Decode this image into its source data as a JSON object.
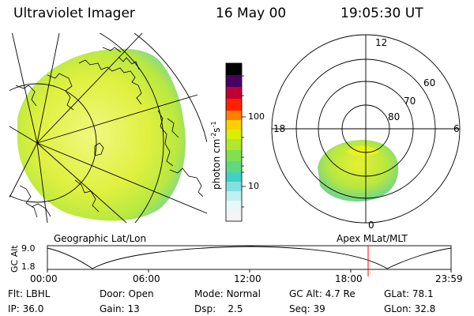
{
  "header": {
    "instrument": "Ultraviolet Imager",
    "date": "16 May 00",
    "time": "19:05:30 UT"
  },
  "colorbar": {
    "label": "photon cm-2s-1",
    "label_base": "photon cm",
    "label_exp1": "-2",
    "label_mid": "s",
    "label_exp2": "-1",
    "scale": "log",
    "range": [
      2.5,
      600
    ],
    "ticks": [
      {
        "value": 10,
        "label": "10"
      },
      {
        "value": 100,
        "label": "100"
      }
    ],
    "colors": [
      "#f0f0f0",
      "#a8e8e8",
      "#40d0d0",
      "#90e040",
      "#d8f000",
      "#ffd000",
      "#ff8000",
      "#ff2000",
      "#c00030",
      "#800060",
      "#300040",
      "#000000"
    ]
  },
  "left_panel": {
    "caption": "Geographic Lat/Lon"
  },
  "right_panel": {
    "caption": "Apex MLat/MLT",
    "mlt_labels": {
      "top": "12",
      "left": "18",
      "right": "6",
      "bottom": "0"
    },
    "lat_labels": [
      {
        "value": 60,
        "label": "60"
      },
      {
        "value": 70,
        "label": "70"
      },
      {
        "value": 80,
        "label": "80"
      }
    ]
  },
  "timeline": {
    "ylabel": "GC Alt",
    "ytick_top": "9.0",
    "ytick_bottom": "1.8",
    "time_labels": [
      "00:00",
      "06:00",
      "12:00",
      "18:00",
      "23:59"
    ],
    "current_time_hours": 19.09,
    "current_marker_color": "#ff0000"
  },
  "info": {
    "flt": {
      "label": "Flt:",
      "value": "LBHL"
    },
    "ip": {
      "label": "IP:",
      "value": "36.0"
    },
    "door": {
      "label": "Door:",
      "value": "Open"
    },
    "gain": {
      "label": "Gain:",
      "value": "13"
    },
    "mode": {
      "label": "Mode:",
      "value": "Normal"
    },
    "dsp": {
      "label": "Dsp:",
      "value": "2.5"
    },
    "gcalt": {
      "label": "GC Alt:",
      "value": "4.7 Re"
    },
    "seq": {
      "label": "Seq:",
      "value": "39"
    },
    "glat": {
      "label": "GLat:",
      "value": "78.1"
    },
    "glon": {
      "label": "GLon:",
      "value": "32.8"
    }
  }
}
